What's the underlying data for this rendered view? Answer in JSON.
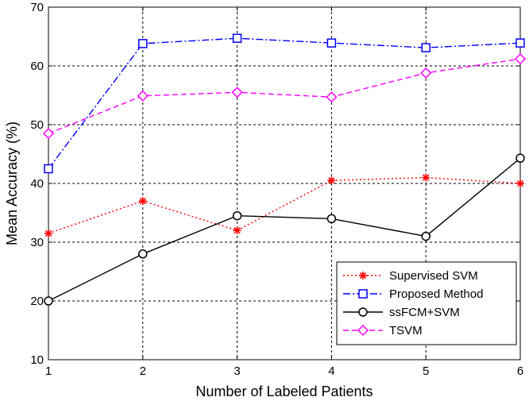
{
  "chart_data": {
    "type": "line",
    "xlabel": "Number of Labeled Patients",
    "ylabel": "Mean Accuracy (%)",
    "xlim": [
      1,
      6
    ],
    "ylim": [
      10,
      70
    ],
    "xticks": [
      1,
      2,
      3,
      4,
      5,
      6
    ],
    "yticks": [
      10,
      20,
      30,
      40,
      50,
      60,
      70
    ],
    "grid": true,
    "legend_position": "bottom-right",
    "x": [
      1,
      2,
      3,
      4,
      5,
      6
    ],
    "series": [
      {
        "name": "Supervised SVM",
        "values": [
          31.5,
          37,
          32,
          40.5,
          41,
          40
        ],
        "color": "#ff0000",
        "dash": "dotted",
        "marker": "asterisk"
      },
      {
        "name": "Proposed Method",
        "values": [
          42.5,
          63.8,
          64.7,
          63.9,
          63.1,
          63.9
        ],
        "color": "#0000ff",
        "dash": "dashdot",
        "marker": "square"
      },
      {
        "name": "ssFCM+SVM",
        "values": [
          20,
          28,
          34.5,
          34,
          31,
          44.3
        ],
        "color": "#000000",
        "dash": "solid",
        "marker": "circle"
      },
      {
        "name": "TSVM",
        "values": [
          48.5,
          54.9,
          55.5,
          54.7,
          58.8,
          61.2
        ],
        "color": "#ff00ff",
        "dash": "dashed",
        "marker": "diamond"
      }
    ]
  }
}
